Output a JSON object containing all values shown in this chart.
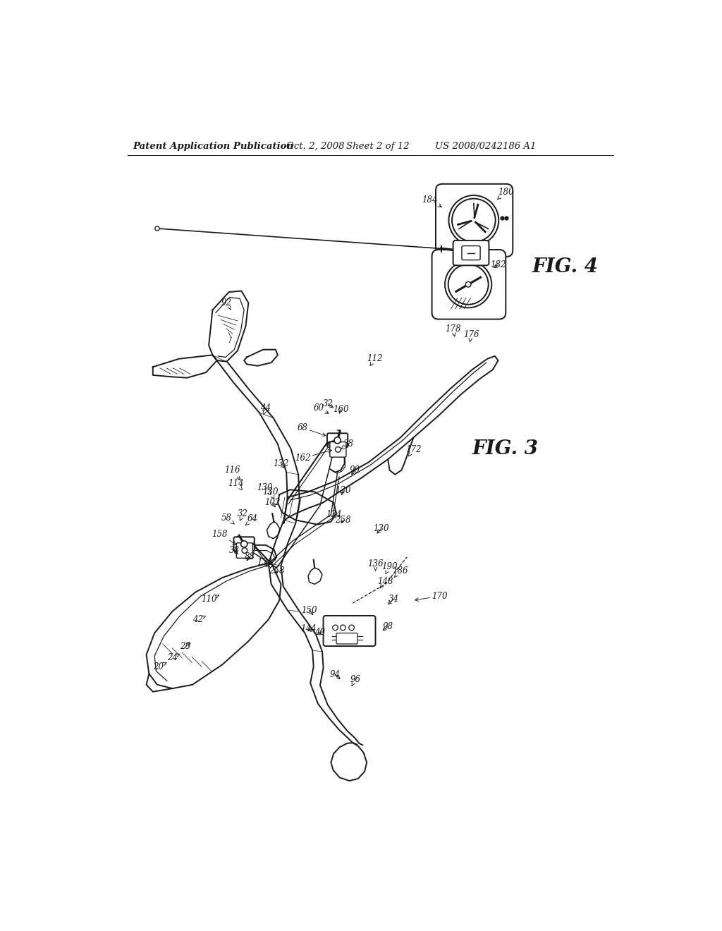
{
  "background_color": "#ffffff",
  "line_color": "#1a1a1a",
  "text_color": "#1a1a1a",
  "header_text": "Patent Application Publication",
  "header_date": "Oct. 2, 2008",
  "header_sheet": "Sheet 2 of 12",
  "header_patent": "US 2008/0242186 A1",
  "fig3_label": "FIG. 3",
  "fig4_label": "FIG. 4",
  "annotation_fontsize": 8.5,
  "header_fontsize": 9.5,
  "fig_label_fontsize": 20
}
